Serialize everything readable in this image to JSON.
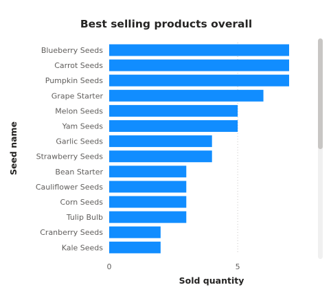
{
  "chart_data": {
    "type": "bar",
    "orientation": "horizontal",
    "title": "Best selling products overall",
    "xlabel": "Sold quantity",
    "ylabel": "Seed name",
    "categories": [
      "Blueberry Seeds",
      "Carrot Seeds",
      "Pumpkin Seeds",
      "Grape Starter",
      "Melon Seeds",
      "Yam Seeds",
      "Garlic Seeds",
      "Strawberry Seeds",
      "Bean Starter",
      "Cauliflower Seeds",
      "Corn Seeds",
      "Tulip Bulb",
      "Cranberry Seeds",
      "Kale Seeds"
    ],
    "values": [
      7,
      7,
      7,
      6,
      5,
      5,
      4,
      4,
      3,
      3,
      3,
      3,
      2,
      2
    ],
    "xlim": [
      0,
      7
    ],
    "xticks": [
      0,
      5
    ],
    "grid": true,
    "bar_color": "#118DFF",
    "scrollbar": {
      "visible": true
    }
  }
}
